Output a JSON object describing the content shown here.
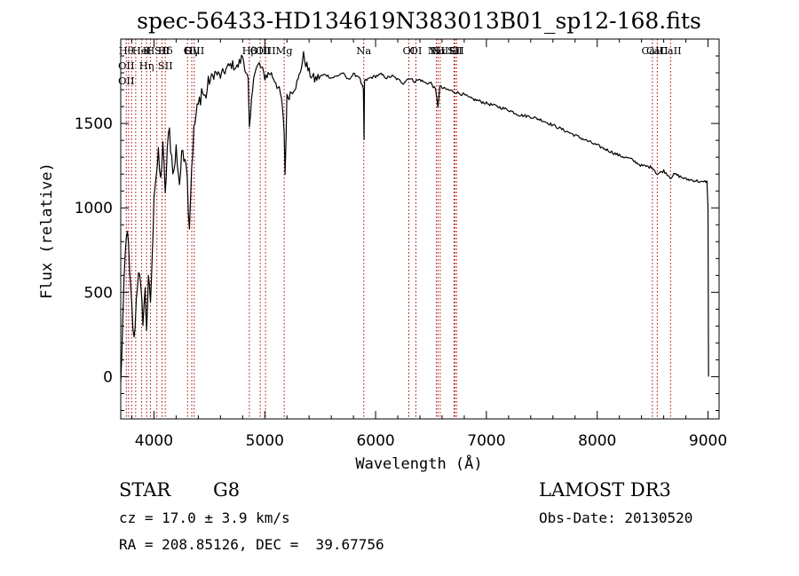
{
  "chart_data": {
    "type": "line",
    "title": "spec-56433-HD134619N383013B01_sp12-168.fits",
    "xlabel": "Wavelength (Å)",
    "ylabel": "Flux (relative)",
    "xlim": [
      3700,
      9100
    ],
    "ylim": [
      -250,
      2000
    ],
    "xticks": [
      4000,
      5000,
      6000,
      7000,
      8000,
      9000
    ],
    "yticks": [
      0,
      500,
      1000,
      1500
    ],
    "series": [
      {
        "name": "flux",
        "x": [
          3700,
          3720,
          3740,
          3760,
          3780,
          3800,
          3820,
          3840,
          3860,
          3880,
          3900,
          3920,
          3933,
          3950,
          3968,
          3985,
          4000,
          4020,
          4040,
          4060,
          4080,
          4101,
          4120,
          4140,
          4160,
          4180,
          4200,
          4230,
          4260,
          4290,
          4320,
          4340,
          4360,
          4380,
          4400,
          4430,
          4460,
          4500,
          4550,
          4600,
          4650,
          4700,
          4750,
          4800,
          4850,
          4861,
          4900,
          4950,
          5000,
          5050,
          5100,
          5150,
          5175,
          5183,
          5200,
          5250,
          5300,
          5350,
          5400,
          5450,
          5500,
          5550,
          5600,
          5650,
          5700,
          5750,
          5800,
          5850,
          5890,
          5896,
          5900,
          5950,
          6000,
          6050,
          6100,
          6150,
          6200,
          6250,
          6300,
          6350,
          6400,
          6450,
          6500,
          6540,
          6563,
          6580,
          6600,
          6650,
          6700,
          6750,
          6800,
          6850,
          6900,
          6950,
          7000,
          7100,
          7200,
          7300,
          7400,
          7500,
          7600,
          7700,
          7800,
          7900,
          8000,
          8100,
          8200,
          8300,
          8400,
          8500,
          8542,
          8600,
          8662,
          8700,
          8800,
          8900,
          8950,
          8990,
          9000,
          9005
        ],
        "values": [
          -50,
          350,
          700,
          900,
          600,
          400,
          200,
          450,
          650,
          500,
          350,
          500,
          300,
          550,
          450,
          700,
          1100,
          1200,
          1300,
          1150,
          1400,
          1050,
          1350,
          1450,
          1300,
          1200,
          1350,
          1150,
          1350,
          1300,
          900,
          1250,
          1450,
          1550,
          1600,
          1700,
          1650,
          1750,
          1800,
          1780,
          1820,
          1850,
          1830,
          1900,
          1750,
          1450,
          1800,
          1850,
          1780,
          1800,
          1750,
          1650,
          1450,
          1200,
          1650,
          1700,
          1750,
          1900,
          1800,
          1760,
          1780,
          1790,
          1770,
          1780,
          1800,
          1760,
          1790,
          1780,
          1700,
          1400,
          1750,
          1770,
          1780,
          1790,
          1770,
          1780,
          1760,
          1740,
          1770,
          1750,
          1760,
          1740,
          1740,
          1700,
          1600,
          1720,
          1710,
          1700,
          1690,
          1680,
          1670,
          1650,
          1640,
          1630,
          1620,
          1600,
          1580,
          1550,
          1540,
          1520,
          1490,
          1460,
          1430,
          1400,
          1370,
          1340,
          1310,
          1290,
          1250,
          1240,
          1200,
          1220,
          1180,
          1200,
          1170,
          1160,
          1150,
          1160,
          1000,
          0
        ]
      }
    ],
    "line_markers": [
      {
        "wavelength": 3750,
        "labels": [
          "Hθ",
          "OII",
          "OII"
        ]
      },
      {
        "wavelength": 3771,
        "labels": []
      },
      {
        "wavelength": 3798,
        "labels": []
      },
      {
        "wavelength": 3835,
        "labels": []
      },
      {
        "wavelength": 3889,
        "labels": [
          "HeI"
        ]
      },
      {
        "wavelength": 3933,
        "labels": [
          "K",
          "Hη"
        ]
      },
      {
        "wavelength": 3968,
        "labels": [
          "H"
        ]
      },
      {
        "wavelength": 4026,
        "labels": []
      },
      {
        "wavelength": 4072,
        "labels": [
          "SII"
        ]
      },
      {
        "wavelength": 4102,
        "labels": [
          "Hδ",
          "SII"
        ]
      },
      {
        "wavelength": 4303,
        "labels": [
          "G"
        ]
      },
      {
        "wavelength": 4341,
        "labels": [
          "Hγ"
        ]
      },
      {
        "wavelength": 4363,
        "labels": [
          "OIII"
        ]
      },
      {
        "wavelength": 4861,
        "labels": [
          "Hβ"
        ]
      },
      {
        "wavelength": 4959,
        "labels": [
          "OIII"
        ]
      },
      {
        "wavelength": 5007,
        "labels": [
          "OIII"
        ]
      },
      {
        "wavelength": 5175,
        "labels": [
          "Mg"
        ]
      },
      {
        "wavelength": 5893,
        "labels": [
          "Na"
        ]
      },
      {
        "wavelength": 6300,
        "labels": [
          "OI"
        ]
      },
      {
        "wavelength": 6364,
        "labels": [
          "OI"
        ]
      },
      {
        "wavelength": 6548,
        "labels": [
          "NII"
        ]
      },
      {
        "wavelength": 6563,
        "labels": [
          "Hα"
        ]
      },
      {
        "wavelength": 6583,
        "labels": [
          "NII"
        ]
      },
      {
        "wavelength": 6708,
        "labels": [
          "Li"
        ]
      },
      {
        "wavelength": 6716,
        "labels": [
          "SII"
        ]
      },
      {
        "wavelength": 6731,
        "labels": [
          "SII"
        ]
      },
      {
        "wavelength": 8498,
        "labels": [
          "CaII"
        ]
      },
      {
        "wavelength": 8542,
        "labels": [
          "CaII"
        ]
      },
      {
        "wavelength": 8662,
        "labels": [
          "CaII"
        ]
      }
    ]
  },
  "info": {
    "class": "STAR",
    "subclass": "G8",
    "survey": "LAMOST DR3",
    "cz": "cz = 17.0 ± 3.9 km/s",
    "obs_date": "Obs-Date: 20130520",
    "coords": "RA = 208.85126, DEC =  39.67756"
  },
  "colors": {
    "spectrum": "#000000",
    "marker": "#b00000",
    "axis": "#000000"
  }
}
